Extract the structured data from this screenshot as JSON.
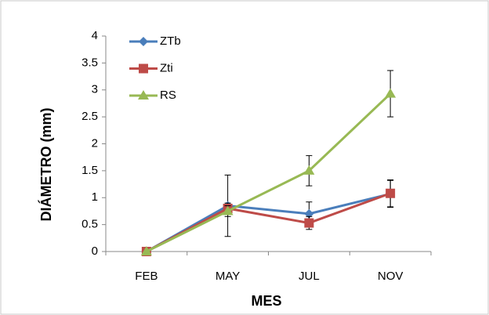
{
  "chart_data": {
    "type": "line",
    "x_label": "MES",
    "y_label": "DIÁMETRO (mm)",
    "categories": [
      "FEB",
      "MAY",
      "JUL",
      "NOV"
    ],
    "ylim": [
      0,
      4
    ],
    "yticks": [
      0,
      0.5,
      1,
      1.5,
      2,
      2.5,
      3,
      3.5,
      4
    ],
    "legend": "upper left",
    "series": [
      {
        "name": "ZTb",
        "color": "#4a7ebb",
        "marker": "diamond",
        "values": [
          0,
          0.85,
          0.7,
          1.07
        ],
        "errors": [
          0,
          0.57,
          0.22,
          0.25
        ]
      },
      {
        "name": "Zti",
        "color": "#be4b48",
        "marker": "square",
        "values": [
          0,
          0.8,
          0.53,
          1.08
        ],
        "errors": [
          0,
          0.1,
          0.12,
          0.25
        ]
      },
      {
        "name": "RS",
        "color": "#98b954",
        "marker": "triangle",
        "values": [
          0,
          0.75,
          1.5,
          2.93
        ],
        "errors": [
          0,
          0.1,
          0.28,
          0.43
        ]
      }
    ]
  }
}
